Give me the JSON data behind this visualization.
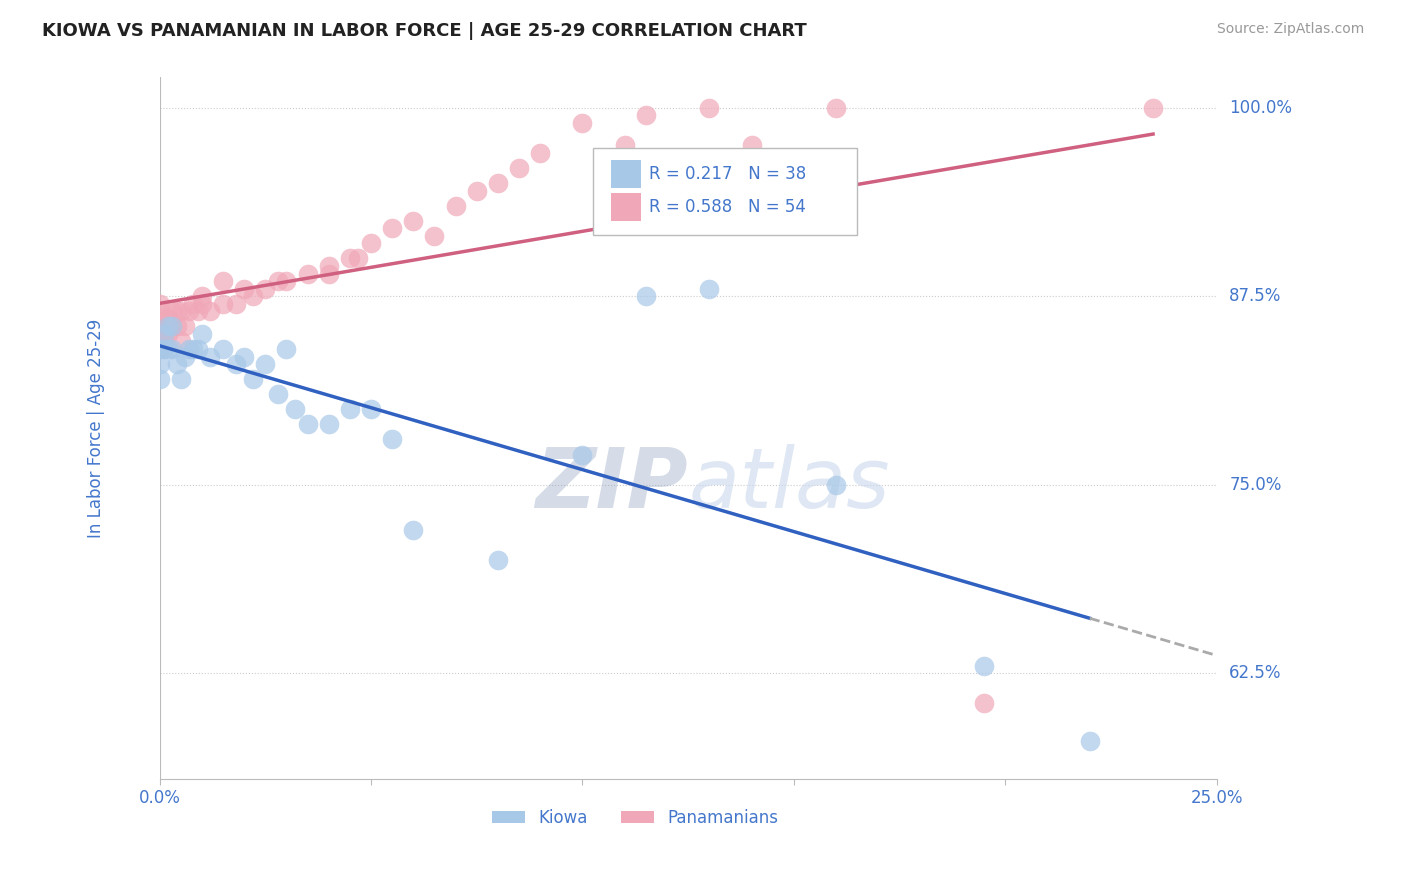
{
  "title": "KIOWA VS PANAMANIAN IN LABOR FORCE | AGE 25-29 CORRELATION CHART",
  "source_text": "Source: ZipAtlas.com",
  "ylabel": "In Labor Force | Age 25-29",
  "xlim": [
    0.0,
    0.25
  ],
  "ylim": [
    0.555,
    1.02
  ],
  "yticks": [
    0.625,
    0.75,
    0.875,
    1.0
  ],
  "ytick_labels": [
    "62.5%",
    "75.0%",
    "87.5%",
    "100.0%"
  ],
  "kiowa_R": 0.217,
  "kiowa_N": 38,
  "pana_R": 0.588,
  "pana_N": 54,
  "kiowa_color": "#a8c8e8",
  "pana_color": "#f0a8b8",
  "kiowa_line_color": "#3060c0",
  "pana_line_color": "#d06080",
  "dashed_line_color": "#aaaaaa",
  "grid_color": "#cccccc",
  "title_color": "#222222",
  "axis_label_color": "#4477cc",
  "watermark_color": "#c8d8ec",
  "kiowa_x": [
    0.0,
    0.0,
    0.0,
    0.001,
    0.001,
    0.002,
    0.002,
    0.003,
    0.003,
    0.004,
    0.005,
    0.006,
    0.007,
    0.008,
    0.009,
    0.01,
    0.012,
    0.015,
    0.018,
    0.02,
    0.022,
    0.025,
    0.028,
    0.03,
    0.032,
    0.035,
    0.04,
    0.045,
    0.05,
    0.055,
    0.06,
    0.08,
    0.1,
    0.115,
    0.13,
    0.16,
    0.195,
    0.22
  ],
  "kiowa_y": [
    0.84,
    0.83,
    0.82,
    0.85,
    0.84,
    0.855,
    0.84,
    0.855,
    0.84,
    0.83,
    0.82,
    0.835,
    0.84,
    0.84,
    0.84,
    0.85,
    0.835,
    0.84,
    0.83,
    0.835,
    0.82,
    0.83,
    0.81,
    0.84,
    0.8,
    0.79,
    0.79,
    0.8,
    0.8,
    0.78,
    0.72,
    0.7,
    0.77,
    0.875,
    0.88,
    0.75,
    0.63,
    0.58
  ],
  "pana_x": [
    0.0,
    0.0,
    0.0,
    0.0,
    0.0,
    0.0,
    0.0,
    0.001,
    0.001,
    0.002,
    0.002,
    0.003,
    0.003,
    0.004,
    0.004,
    0.005,
    0.005,
    0.006,
    0.007,
    0.008,
    0.009,
    0.01,
    0.01,
    0.012,
    0.015,
    0.015,
    0.018,
    0.02,
    0.022,
    0.025,
    0.028,
    0.03,
    0.035,
    0.04,
    0.04,
    0.045,
    0.047,
    0.05,
    0.055,
    0.06,
    0.065,
    0.07,
    0.075,
    0.08,
    0.085,
    0.09,
    0.1,
    0.11,
    0.115,
    0.13,
    0.14,
    0.16,
    0.195,
    0.235
  ],
  "pana_y": [
    0.84,
    0.845,
    0.85,
    0.855,
    0.86,
    0.865,
    0.87,
    0.845,
    0.855,
    0.85,
    0.86,
    0.855,
    0.865,
    0.855,
    0.865,
    0.845,
    0.865,
    0.855,
    0.865,
    0.87,
    0.865,
    0.87,
    0.875,
    0.865,
    0.87,
    0.885,
    0.87,
    0.88,
    0.875,
    0.88,
    0.885,
    0.885,
    0.89,
    0.895,
    0.89,
    0.9,
    0.9,
    0.91,
    0.92,
    0.925,
    0.915,
    0.935,
    0.945,
    0.95,
    0.96,
    0.97,
    0.99,
    0.975,
    0.995,
    1.0,
    0.975,
    1.0,
    0.605,
    1.0
  ]
}
